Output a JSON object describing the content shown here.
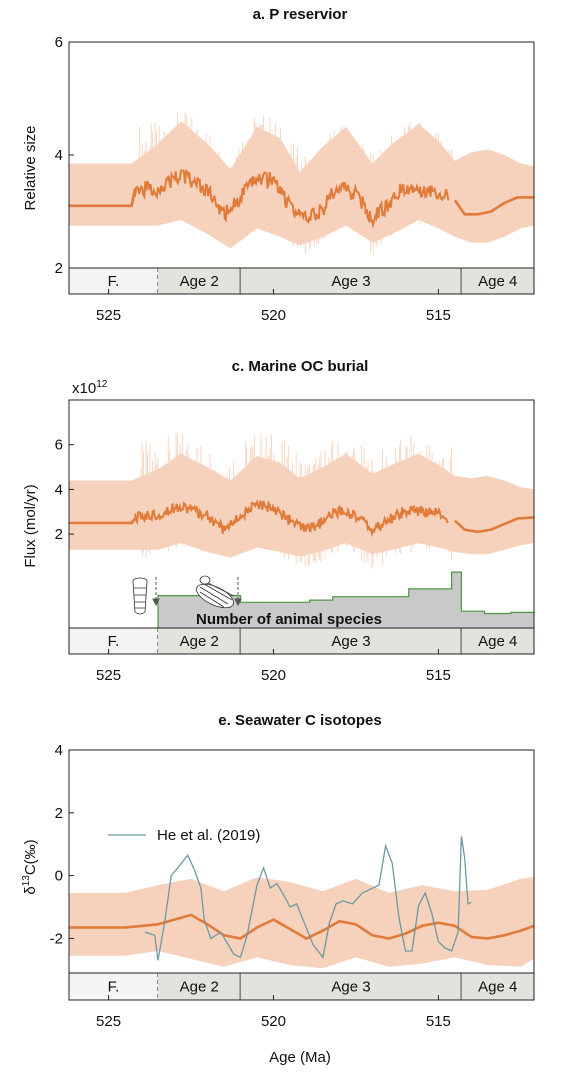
{
  "colors": {
    "band": "#f6d2bd",
    "mean": "#e07b39",
    "raw": "#e07b39",
    "proxy": "#6e98a3",
    "species_fill": "#c9c9c9",
    "species_line": "#4a9a3e",
    "stage_F": "#f4f4f2",
    "stage_other": "#e3e3dd"
  },
  "x_axis": {
    "domain": [
      526.2,
      512.1
    ],
    "ticks": [
      525,
      520,
      515
    ],
    "tick_labels": [
      "525",
      "520",
      "515"
    ],
    "label": "Age (Ma)"
  },
  "stages": [
    {
      "label": "F.",
      "from": 526.2,
      "to": 523.5,
      "boundary": "dashed"
    },
    {
      "label": "Age 2",
      "from": 523.5,
      "to": 521.0,
      "boundary": "solid"
    },
    {
      "label": "Age 3",
      "from": 521.0,
      "to": 514.3,
      "boundary": "solid"
    },
    {
      "label": "Age 4",
      "from": 514.3,
      "to": 512.1,
      "boundary": "none"
    }
  ],
  "chart_data": [
    {
      "type": "line",
      "title": "a. P reservior",
      "ylabel": "Relative size",
      "ylim": [
        2,
        6
      ],
      "yticks": [
        2,
        4,
        6
      ],
      "ytick_labels": [
        "2",
        "4",
        "6"
      ],
      "series": [
        {
          "role": "mean",
          "x": [
            526.2,
            525.0,
            524.3,
            524.2,
            523.5,
            522.8,
            522.5,
            522.0,
            521.5,
            521.0,
            520.5,
            520.0,
            519.5,
            519.0,
            518.5,
            518.2,
            517.8,
            517.4,
            517.0,
            516.5,
            516.0,
            515.5,
            515.0,
            514.5,
            514.2,
            513.8,
            513.4,
            513.0,
            512.6,
            512.1
          ],
          "y": [
            3.1,
            3.1,
            3.1,
            3.4,
            3.4,
            3.65,
            3.55,
            3.35,
            2.95,
            3.25,
            3.6,
            3.55,
            3.1,
            2.85,
            3.05,
            3.35,
            3.4,
            3.25,
            2.85,
            3.15,
            3.45,
            3.4,
            3.35,
            3.2,
            2.95,
            2.95,
            3.0,
            3.15,
            3.25,
            3.25
          ]
        },
        {
          "role": "band_upper",
          "x": [
            526.2,
            524.3,
            523.5,
            522.8,
            522.0,
            521.3,
            520.5,
            519.8,
            519.2,
            518.5,
            517.8,
            517.0,
            516.4,
            515.6,
            515.0,
            514.5,
            514.0,
            513.5,
            513.0,
            512.5,
            512.1
          ],
          "y": [
            3.85,
            3.85,
            4.2,
            4.6,
            4.2,
            3.75,
            4.5,
            4.3,
            3.7,
            4.15,
            4.5,
            3.85,
            4.2,
            4.55,
            4.25,
            3.9,
            4.05,
            4.1,
            4.0,
            3.85,
            3.8
          ]
        },
        {
          "role": "band_lower",
          "x": [
            526.2,
            524.3,
            523.5,
            522.8,
            522.0,
            521.3,
            520.5,
            519.8,
            519.2,
            518.5,
            517.8,
            517.0,
            516.4,
            515.6,
            515.0,
            514.5,
            514.0,
            513.5,
            513.0,
            512.5,
            512.1
          ],
          "y": [
            2.75,
            2.75,
            2.75,
            2.85,
            2.6,
            2.35,
            2.7,
            2.55,
            2.4,
            2.55,
            2.75,
            2.45,
            2.6,
            2.85,
            2.7,
            2.55,
            2.45,
            2.45,
            2.55,
            2.7,
            2.75
          ]
        }
      ]
    },
    {
      "type": "line",
      "title": "c. Marine OC burial",
      "ylabel": "Flux (mol/yr)",
      "ylabel_multiplier": "x10",
      "ylabel_exponent": "12",
      "ylim": [
        -2.2,
        8
      ],
      "yticks": [
        2,
        4,
        6
      ],
      "ytick_labels": [
        "2",
        "4",
        "6"
      ],
      "annotation": "Number of animal species",
      "series": [
        {
          "role": "mean",
          "x": [
            526.2,
            525.0,
            524.3,
            524.2,
            523.5,
            522.8,
            522.5,
            522.0,
            521.5,
            521.0,
            520.5,
            520.0,
            519.5,
            519.0,
            518.5,
            518.2,
            517.8,
            517.4,
            517.0,
            516.5,
            516.0,
            515.5,
            515.0,
            514.5,
            514.2,
            513.8,
            513.4,
            513.0,
            512.6,
            512.1
          ],
          "y": [
            2.5,
            2.5,
            2.5,
            2.7,
            2.9,
            3.3,
            3.1,
            2.8,
            2.2,
            2.8,
            3.3,
            3.2,
            2.6,
            2.15,
            2.55,
            2.95,
            3.0,
            2.75,
            2.15,
            2.65,
            3.05,
            3.0,
            2.9,
            2.6,
            2.2,
            2.1,
            2.2,
            2.45,
            2.7,
            2.75
          ]
        },
        {
          "role": "band_upper",
          "x": [
            526.2,
            524.3,
            523.5,
            522.8,
            522.0,
            521.3,
            520.5,
            519.8,
            519.2,
            518.5,
            517.8,
            517.0,
            516.4,
            515.6,
            515.0,
            514.5,
            514.0,
            513.5,
            513.0,
            512.5,
            512.1
          ],
          "y": [
            4.4,
            4.4,
            4.9,
            5.6,
            5.0,
            4.4,
            5.5,
            5.2,
            4.5,
            5.0,
            5.6,
            4.7,
            5.1,
            5.6,
            5.1,
            4.6,
            4.5,
            4.6,
            4.4,
            4.1,
            4.0
          ]
        },
        {
          "role": "band_lower",
          "x": [
            526.2,
            524.3,
            523.5,
            522.8,
            522.0,
            521.3,
            520.5,
            519.8,
            519.2,
            518.5,
            517.8,
            517.0,
            516.4,
            515.6,
            515.0,
            514.5,
            514.0,
            513.5,
            513.0,
            512.5,
            512.1
          ],
          "y": [
            1.3,
            1.3,
            1.3,
            1.6,
            1.2,
            0.95,
            1.4,
            1.2,
            1.0,
            1.25,
            1.6,
            1.1,
            1.3,
            1.6,
            1.4,
            1.2,
            1.1,
            1.1,
            1.3,
            1.5,
            1.6
          ]
        },
        {
          "role": "species_steps",
          "x": [
            523.5,
            522.3,
            521.0,
            520.0,
            518.9,
            518.2,
            516.2,
            515.9,
            514.9,
            514.6,
            514.3,
            513.6,
            512.8,
            512.1
          ],
          "y": [
            -0.75,
            -0.75,
            -1.05,
            -1.05,
            -0.95,
            -0.8,
            -0.8,
            -0.45,
            -0.45,
            0.3,
            -1.45,
            -1.55,
            -1.5,
            -1.5
          ]
        }
      ]
    },
    {
      "type": "line",
      "title": "e. Seawater C isotopes",
      "ylabel_prefix": "δ",
      "ylabel_sup": "13",
      "ylabel_suffix": "C(‰)",
      "ylim": [
        -3.1,
        4
      ],
      "yticks": [
        -2,
        0,
        2,
        4
      ],
      "ytick_labels": [
        "-2",
        "0",
        "2",
        "4"
      ],
      "legend_label": "He et al. (2019)",
      "legend_position": "upper-left",
      "series": [
        {
          "role": "mean",
          "x": [
            526.2,
            524.5,
            524.0,
            523.5,
            523.0,
            522.5,
            522.0,
            521.5,
            521.0,
            520.5,
            520.0,
            519.5,
            519.0,
            518.5,
            518.0,
            517.5,
            517.0,
            516.5,
            516.0,
            515.5,
            515.0,
            514.5,
            514.0,
            513.5,
            513.0,
            512.5,
            512.1
          ],
          "y": [
            -1.65,
            -1.65,
            -1.6,
            -1.55,
            -1.4,
            -1.25,
            -1.55,
            -1.9,
            -2.0,
            -1.65,
            -1.4,
            -1.7,
            -2.0,
            -1.75,
            -1.45,
            -1.55,
            -1.9,
            -2.0,
            -1.85,
            -1.6,
            -1.5,
            -1.6,
            -1.95,
            -2.0,
            -1.9,
            -1.75,
            -1.6
          ]
        },
        {
          "role": "band_upper",
          "x": [
            526.2,
            524.5,
            523.5,
            522.5,
            521.5,
            520.5,
            519.5,
            518.5,
            517.5,
            516.5,
            515.5,
            514.5,
            513.5,
            512.5,
            512.1
          ],
          "y": [
            -0.55,
            -0.55,
            -0.3,
            -0.1,
            -0.5,
            -0.05,
            -0.2,
            -0.5,
            -0.1,
            -0.55,
            -0.3,
            -0.5,
            -0.45,
            -0.1,
            -0.05
          ]
        },
        {
          "role": "band_lower",
          "x": [
            526.2,
            524.5,
            523.5,
            522.5,
            521.5,
            520.5,
            519.5,
            518.5,
            517.5,
            516.5,
            515.5,
            514.5,
            513.5,
            512.5,
            512.1
          ],
          "y": [
            -2.55,
            -2.55,
            -2.4,
            -2.65,
            -2.9,
            -2.6,
            -2.85,
            -2.95,
            -2.6,
            -2.9,
            -2.8,
            -2.6,
            -2.85,
            -2.9,
            -2.65
          ]
        },
        {
          "role": "proxy",
          "name": "He et al. (2019)",
          "x": [
            523.9,
            523.6,
            523.5,
            523.3,
            523.1,
            522.9,
            522.6,
            522.4,
            522.2,
            522.1,
            521.9,
            521.6,
            521.2,
            521.0,
            520.8,
            520.5,
            520.3,
            520.1,
            519.9,
            519.7,
            519.5,
            519.3,
            519.1,
            518.8,
            518.5,
            518.3,
            518.1,
            517.9,
            517.6,
            517.3,
            517.0,
            516.8,
            516.6,
            516.4,
            516.2,
            516.0,
            515.8,
            515.6,
            515.4,
            515.2,
            515.0,
            514.8,
            514.6,
            514.4,
            514.3,
            514.2,
            514.1,
            514.0
          ],
          "y": [
            -1.8,
            -1.9,
            -2.7,
            -1.5,
            0.0,
            0.25,
            0.65,
            0.2,
            -0.4,
            -1.4,
            -2.0,
            -1.8,
            -2.5,
            -2.6,
            -1.9,
            -0.3,
            0.25,
            -0.4,
            -0.25,
            -0.6,
            -1.0,
            -0.9,
            -1.4,
            -2.2,
            -2.6,
            -1.5,
            -0.9,
            -0.8,
            -0.9,
            -0.55,
            -0.4,
            -0.3,
            0.95,
            0.4,
            -1.3,
            -2.4,
            -2.4,
            -0.95,
            -0.55,
            -1.2,
            -2.1,
            -2.3,
            -2.4,
            -1.8,
            1.25,
            0.55,
            -0.9,
            -0.85
          ]
        }
      ]
    }
  ]
}
